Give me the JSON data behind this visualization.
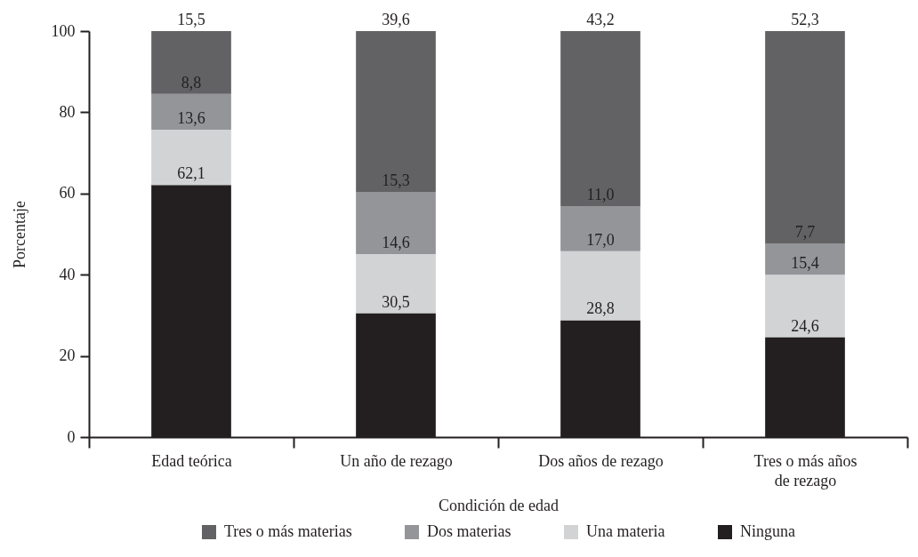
{
  "chart_data": {
    "type": "bar",
    "stacked": true,
    "xlabel": "Condición de edad",
    "ylabel": "Porcentaje",
    "categories": [
      "Edad teórica",
      "Un año de rezago",
      "Dos años de rezago",
      "Tres o más años de rezago"
    ],
    "series": [
      {
        "name": "Ninguna",
        "color": "#231f20",
        "values": [
          62.1,
          30.5,
          28.8,
          24.6
        ],
        "value_labels": [
          "62,1",
          "30,5",
          "28,8",
          "24,6"
        ]
      },
      {
        "name": "Una materia",
        "color": "#d1d3d4",
        "values": [
          13.6,
          14.6,
          17.0,
          15.4
        ],
        "value_labels": [
          "13,6",
          "14,6",
          "17,0",
          "15,4"
        ]
      },
      {
        "name": "Dos materias",
        "color": "#939598",
        "values": [
          8.8,
          15.3,
          11.0,
          7.7
        ],
        "value_labels": [
          "8,8",
          "15,3",
          "11,0",
          "7,7"
        ]
      },
      {
        "name": "Tres o más materias",
        "color": "#626264",
        "values": [
          15.5,
          39.6,
          43.2,
          52.3
        ],
        "value_labels": [
          "15,5",
          "39,6",
          "43,2",
          "52,3"
        ]
      }
    ],
    "ylim": [
      0,
      100
    ],
    "yticks": [
      0,
      20,
      40,
      60,
      80,
      100
    ],
    "grid": false,
    "legend": "bottom"
  }
}
